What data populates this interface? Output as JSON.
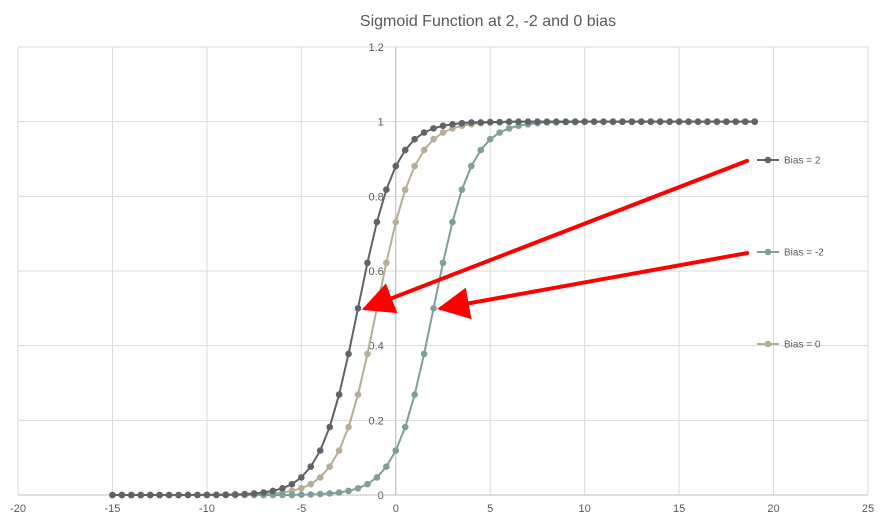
{
  "chart_data": {
    "type": "scatter",
    "title": "Sigmoid Function at 2, -2 and 0 bias",
    "xlabel": "",
    "ylabel": "",
    "xlim": [
      -20,
      25
    ],
    "ylim": [
      0,
      1.2
    ],
    "x_ticks": [
      "-20",
      "-15",
      "-10",
      "-5",
      "0",
      "5",
      "10",
      "15",
      "20",
      "25"
    ],
    "y_ticks": [
      "0",
      "0.2",
      "0.4",
      "0.6",
      "0.8",
      "1",
      "1.2"
    ],
    "grid": true,
    "legend_position": "right",
    "x": [
      -15,
      -14.5,
      -14,
      -13.5,
      -13,
      -12.5,
      -12,
      -11.5,
      -11,
      -10.5,
      -10,
      -9.5,
      -9,
      -8.5,
      -8,
      -7.5,
      -7,
      -6.5,
      -6,
      -5.5,
      -5,
      -4.5,
      -4,
      -3.5,
      -3,
      -2.5,
      -2,
      -1.5,
      -1,
      -0.5,
      0,
      0.5,
      1,
      1.5,
      2,
      2.5,
      3,
      3.5,
      4,
      4.5,
      5,
      5.5,
      6,
      6.5,
      7,
      7.5,
      8,
      8.5,
      9,
      9.5,
      10,
      10.5,
      11,
      11.5,
      12,
      12.5,
      13,
      13.5,
      14,
      14.5,
      15,
      15.5,
      16,
      16.5,
      17,
      17.5,
      18,
      18.5,
      19
    ],
    "series": [
      {
        "name": "Bias = 2",
        "color": "#5f6368",
        "values": [
          0,
          0,
          0,
          0,
          0,
          0,
          0,
          0,
          0.0001,
          0.0002,
          0.0003,
          0.0006,
          0.0009,
          0.0015,
          0.0025,
          0.0041,
          0.0067,
          0.011,
          0.018,
          0.029,
          0.047,
          0.076,
          0.119,
          0.182,
          0.269,
          0.378,
          0.5,
          0.622,
          0.731,
          0.818,
          0.881,
          0.924,
          0.953,
          0.971,
          0.982,
          0.989,
          0.993,
          0.996,
          0.998,
          0.998,
          0.999,
          0.999,
          1,
          1,
          1,
          1,
          1,
          1,
          1,
          1,
          1,
          1,
          1,
          1,
          1,
          1,
          1,
          1,
          1,
          1,
          1,
          1,
          1,
          1,
          1,
          1,
          1,
          1,
          1
        ]
      },
      {
        "name": "Bias = -2",
        "color": "#7f9f9a",
        "values": [
          0,
          0,
          0,
          0,
          0,
          0,
          0,
          0,
          0,
          0,
          0,
          0,
          0,
          0,
          0,
          0,
          0,
          0,
          0,
          0,
          0.0009,
          0.0015,
          0.0025,
          0.0041,
          0.0067,
          0.011,
          0.018,
          0.029,
          0.047,
          0.076,
          0.119,
          0.182,
          0.269,
          0.378,
          0.5,
          0.622,
          0.731,
          0.818,
          0.881,
          0.924,
          0.953,
          0.971,
          0.982,
          0.989,
          0.993,
          0.996,
          0.998,
          0.998,
          0.999,
          0.999,
          1,
          1,
          1,
          1,
          1,
          1,
          1,
          1,
          1,
          1,
          1,
          1,
          1,
          1,
          1,
          1,
          1,
          1,
          1
        ]
      },
      {
        "name": "Bias = 0",
        "color": "#b5ad95",
        "values": [
          0,
          0,
          0,
          0,
          0,
          0,
          0,
          0,
          0,
          0,
          0.0001,
          0.0002,
          0.0003,
          0.0006,
          0.0009,
          0.0015,
          0.0025,
          0.0041,
          0.0067,
          0.011,
          0.018,
          0.029,
          0.047,
          0.076,
          0.119,
          0.182,
          0.269,
          0.378,
          0.5,
          0.622,
          0.731,
          0.818,
          0.881,
          0.924,
          0.953,
          0.971,
          0.982,
          0.989,
          0.993,
          0.996,
          0.998,
          0.998,
          0.999,
          0.999,
          1,
          1,
          1,
          1,
          1,
          1,
          1,
          1,
          1,
          1,
          1,
          1,
          1,
          1,
          1,
          1,
          1,
          1,
          1,
          1,
          1,
          1,
          1,
          1,
          1
        ]
      }
    ],
    "annotations": [
      {
        "type": "arrow",
        "color": "#ff0000",
        "from": [
          18.6,
          0.895
        ],
        "to": [
          -1.6,
          0.5
        ]
      },
      {
        "type": "arrow",
        "color": "#ff0000",
        "from": [
          18.6,
          0.648
        ],
        "to": [
          2.4,
          0.5
        ]
      }
    ]
  }
}
